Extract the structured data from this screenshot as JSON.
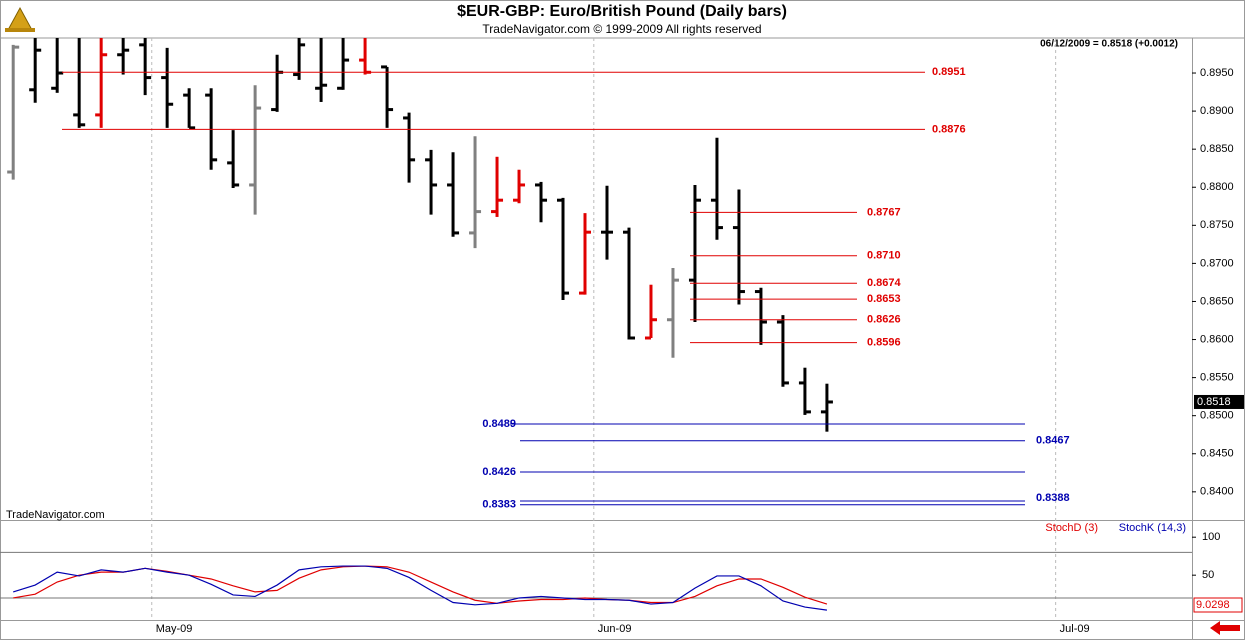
{
  "header": {
    "title": "$EUR-GBP:  Euro/British Pound  (Daily bars)",
    "subtitle": "TradeNavigator.com © 1999-2009 All rights reserved",
    "quote": "06/12/2009 = 0.8518 (+0.0012)",
    "watermark": "TradeNavigator.com"
  },
  "chart_data": [
    {
      "type": "ohlc",
      "categories": [
        null,
        null,
        null,
        null,
        null,
        null,
        null,
        null,
        null,
        null,
        null,
        null,
        null,
        null,
        null,
        null,
        null,
        null,
        null,
        null,
        null,
        null,
        null,
        null,
        null,
        null,
        null,
        null,
        null,
        null,
        null,
        null,
        null,
        null,
        null,
        null,
        null,
        null
      ],
      "ohlc": [
        [
          0.882,
          0.8987,
          0.881,
          0.8984
        ],
        [
          0.8928,
          0.8996,
          0.8911,
          0.898
        ],
        [
          0.893,
          0.8996,
          0.8924,
          0.895
        ],
        [
          0.8895,
          0.8996,
          0.8878,
          0.8882
        ],
        [
          0.8895,
          0.8996,
          0.8878,
          0.8974
        ],
        [
          0.8974,
          0.8996,
          0.8948,
          0.898
        ],
        [
          0.8987,
          0.8996,
          0.8921,
          0.8944
        ],
        [
          0.8944,
          0.8983,
          0.8878,
          0.8909
        ],
        [
          0.8921,
          0.893,
          0.8878,
          0.8878
        ],
        [
          0.8921,
          0.893,
          0.8823,
          0.8836
        ],
        [
          0.8832,
          0.8875,
          0.8799,
          0.8803
        ],
        [
          0.8803,
          0.8934,
          0.8764,
          0.8904
        ],
        [
          0.8902,
          0.8974,
          0.8899,
          0.8951
        ],
        [
          0.8948,
          0.8996,
          0.8941,
          0.8987
        ],
        [
          0.893,
          0.8996,
          0.8912,
          0.8934
        ],
        [
          0.893,
          0.8996,
          0.8928,
          0.8967
        ],
        [
          0.8967,
          0.8996,
          0.8948,
          0.8951
        ],
        [
          0.8958,
          0.8958,
          0.8878,
          0.8902
        ],
        [
          0.8891,
          0.8898,
          0.8806,
          0.8836
        ],
        [
          0.8836,
          0.8849,
          0.8764,
          0.8803
        ],
        [
          0.8803,
          0.8846,
          0.8735,
          0.874
        ],
        [
          0.874,
          0.8867,
          0.872,
          0.8768
        ],
        [
          0.8768,
          0.884,
          0.8761,
          0.8783
        ],
        [
          0.8783,
          0.8823,
          0.8779,
          0.8803
        ],
        [
          0.8803,
          0.8807,
          0.8754,
          0.8783
        ],
        [
          0.8783,
          0.8786,
          0.8652,
          0.8661
        ],
        [
          0.8661,
          0.8766,
          0.8659,
          0.8741
        ],
        [
          0.8741,
          0.8802,
          0.8705,
          0.8741
        ],
        [
          0.8741,
          0.8747,
          0.86,
          0.8602
        ],
        [
          0.8602,
          0.8672,
          0.8602,
          0.8626
        ],
        [
          0.8626,
          0.8694,
          0.8576,
          0.8678
        ],
        [
          0.8678,
          0.8803,
          0.8623,
          0.8783
        ],
        [
          0.8783,
          0.8865,
          0.8731,
          0.8747
        ],
        [
          0.8747,
          0.8797,
          0.8646,
          0.8663
        ],
        [
          0.8663,
          0.8668,
          0.8593,
          0.8623
        ],
        [
          0.8623,
          0.8632,
          0.8538,
          0.8543
        ],
        [
          0.8543,
          0.8563,
          0.8501,
          0.8505
        ],
        [
          0.8505,
          0.8542,
          0.8479,
          0.8518
        ]
      ],
      "colors": [
        "#808080",
        "#000000",
        "#000000",
        "#000000",
        "#e00000",
        "#000000",
        "#000000",
        "#000000",
        "#000000",
        "#000000",
        "#000000",
        "#808080",
        "#000000",
        "#000000",
        "#000000",
        "#000000",
        "#e00000",
        "#000000",
        "#000000",
        "#000000",
        "#000000",
        "#808080",
        "#e00000",
        "#e00000",
        "#000000",
        "#000000",
        "#e00000",
        "#000000",
        "#000000",
        "#e00000",
        "#808080",
        "#000000",
        "#000000",
        "#000000",
        "#000000",
        "#000000",
        "#000000",
        "#000000"
      ],
      "levels": [
        0.8951,
        0.8876,
        0.8767,
        0.871,
        0.8674,
        0.8653,
        0.8626,
        0.8596,
        0.8489,
        0.8467,
        0.8426,
        0.8388,
        0.8383
      ],
      "level_labels": [
        "0.8951",
        "0.8876",
        "0.8767",
        "0.8710",
        "0.8674",
        "0.8653",
        "0.8626",
        "0.8596",
        "0.8489",
        "0.8467",
        "0.8426",
        "0.8388",
        "0.8383"
      ],
      "level_colors": [
        "#e00000",
        "#e00000",
        "#e00000",
        "#e00000",
        "#e00000",
        "#e00000",
        "#e00000",
        "#e00000",
        "#0000b0",
        "#0000b0",
        "#0000b0",
        "#0000b0",
        "#0000b0"
      ],
      "xlim": [
        -0.6,
        53.6
      ],
      "xticks": [
        {
          "value": 6.3,
          "label": "May-09"
        },
        {
          "value": 26.4,
          "label": "Jun-09"
        },
        {
          "value": 47.4,
          "label": "Jul-09"
        }
      ],
      "ylim": [
        0.8363,
        0.8996
      ],
      "yticks": [
        {
          "value": 0.84,
          "label": "0.8400"
        },
        {
          "value": 0.845,
          "label": "0.8450"
        },
        {
          "value": 0.85,
          "label": "0.8500"
        },
        {
          "value": 0.855,
          "label": "0.8550"
        },
        {
          "value": 0.86,
          "label": "0.8600"
        },
        {
          "value": 0.865,
          "label": "0.8650"
        },
        {
          "value": 0.87,
          "label": "0.8700"
        },
        {
          "value": 0.875,
          "label": "0.8750"
        },
        {
          "value": 0.88,
          "label": "0.8800"
        },
        {
          "value": 0.885,
          "label": "0.8850"
        },
        {
          "value": 0.89,
          "label": "0.8900"
        },
        {
          "value": 0.895,
          "label": "0.8950"
        }
      ]
    },
    {
      "type": "line",
      "ylim": [
        -9,
        120
      ],
      "yticks": [
        50,
        100
      ],
      "levels": [
        20,
        80
      ],
      "last_label": "9.0298",
      "series": [
        {
          "name": "StochD (3)",
          "color": "#e00000",
          "values": [
            20,
            25,
            41,
            50,
            54,
            54,
            59,
            55,
            50,
            45,
            36,
            28,
            30,
            46,
            57,
            61,
            62,
            61,
            54,
            41,
            28,
            17,
            13,
            16,
            18,
            18,
            20,
            18,
            17,
            14,
            14,
            22,
            36,
            45,
            45,
            34,
            21,
            12
          ]
        },
        {
          "name": "StochK (14,3)",
          "color": "#0000b0",
          "values": [
            28,
            37,
            54,
            49,
            57,
            54,
            59,
            54,
            50,
            38,
            24,
            22,
            37,
            57,
            61,
            62,
            62,
            59,
            47,
            30,
            14,
            11,
            13,
            20,
            22,
            20,
            18,
            18,
            17,
            12,
            14,
            33,
            49,
            49,
            36,
            16,
            8,
            4
          ]
        }
      ]
    }
  ]
}
